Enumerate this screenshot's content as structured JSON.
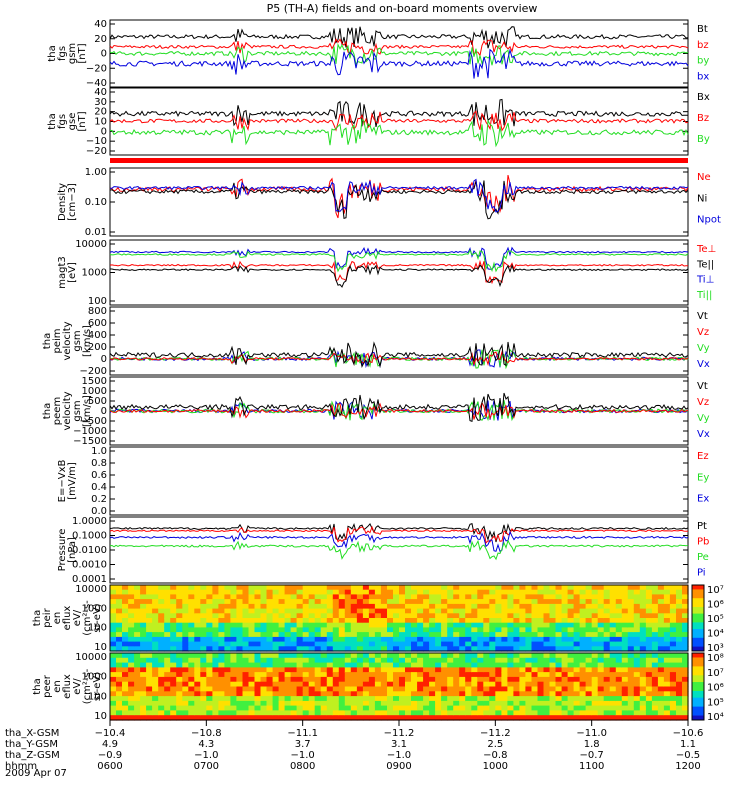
{
  "title": "P5 (TH-A) fields and on-board moments overview",
  "date": "2009 Apr 07",
  "colors": {
    "black": "#000000",
    "red": "#ff0000",
    "green": "#22dd22",
    "blue": "#0000dd",
    "cyan": "#00a0ff"
  },
  "chart_data": [
    {
      "type": "line",
      "ylabel": [
        "tha",
        "fgs",
        "gsm",
        "[nT]"
      ],
      "yticks": [
        "40",
        "20",
        "0",
        "−20",
        "−40"
      ],
      "ylim": [
        -40,
        40
      ],
      "legend": [
        {
          "name": "Bt",
          "color": "black"
        },
        {
          "name": "bz",
          "color": "red"
        },
        {
          "name": "by",
          "color": "green"
        },
        {
          "name": "bx",
          "color": "blue"
        }
      ],
      "series": [
        {
          "name": "Bt",
          "base": 20,
          "noise": 4
        },
        {
          "name": "bz",
          "base": 8,
          "noise": 3
        },
        {
          "name": "by",
          "base": 0,
          "noise": 4
        },
        {
          "name": "bx",
          "base": -12,
          "noise": 5
        }
      ]
    },
    {
      "type": "line",
      "ylabel": [
        "tha",
        "fgs",
        "gse",
        "[nT]"
      ],
      "yticks": [
        "40",
        "30",
        "20",
        "10",
        "0",
        "−10",
        "−20"
      ],
      "ylim": [
        -25,
        40
      ],
      "legend": [
        {
          "name": "Bx",
          "color": "black"
        },
        {
          "name": "Bz",
          "color": "red"
        },
        {
          "name": "By",
          "color": "green"
        }
      ],
      "series": [
        {
          "name": "Bx",
          "base": 15,
          "noise": 4
        },
        {
          "name": "Bz",
          "base": 8,
          "noise": 3
        },
        {
          "name": "By",
          "base": -3,
          "noise": 4
        }
      ]
    },
    {
      "type": "line",
      "log": true,
      "ylabel": [
        "Density",
        "[cm−3]"
      ],
      "yticks": [
        "1.00",
        "0.10",
        "0.01"
      ],
      "ylim": [
        0.01,
        1.4
      ],
      "legend": [
        {
          "name": "Ne",
          "color": "red"
        },
        {
          "name": "Ni",
          "color": "black"
        },
        {
          "name": "Npot",
          "color": "blue"
        }
      ],
      "series": [
        {
          "name": "Ne",
          "base": 0.3,
          "noise": 0.25
        },
        {
          "name": "Ni",
          "base": 0.25,
          "noise": 0.2
        },
        {
          "name": "Npot",
          "base": 0.33,
          "noise": 0.15
        }
      ]
    },
    {
      "type": "line",
      "log": true,
      "ylabel": [
        "magt3",
        "[eV]"
      ],
      "yticks": [
        "10000",
        "1000",
        "100"
      ],
      "ylim": [
        40,
        15000
      ],
      "legend": [
        {
          "name": "Te⊥",
          "color": "red"
        },
        {
          "name": "Te||",
          "color": "black"
        },
        {
          "name": "Ti⊥",
          "color": "blue"
        },
        {
          "name": "Ti||",
          "color": "green"
        }
      ],
      "series": [
        {
          "name": "Ti⊥",
          "base": 5000,
          "noise": 0.1
        },
        {
          "name": "Ti||",
          "base": 4000,
          "noise": 0.1
        },
        {
          "name": "Te⊥",
          "base": 1500,
          "noise": 0.1
        },
        {
          "name": "Te||",
          "base": 1000,
          "noise": 0.1
        }
      ]
    },
    {
      "type": "line",
      "ylabel": [
        "tha",
        "peim",
        "velocity",
        "gsm",
        "[km/s]"
      ],
      "yticks": [
        "800",
        "600",
        "400",
        "200",
        "0",
        "−200"
      ],
      "ylim": [
        -250,
        800
      ],
      "legend": [
        {
          "name": "Vt",
          "color": "black"
        },
        {
          "name": "Vz",
          "color": "red"
        },
        {
          "name": "Vy",
          "color": "green"
        },
        {
          "name": "Vx",
          "color": "blue"
        }
      ],
      "series": [
        {
          "name": "Vx",
          "base": 0,
          "noise": 40
        },
        {
          "name": "Vy",
          "base": 0,
          "noise": 40
        },
        {
          "name": "Vz",
          "base": 0,
          "noise": 30
        },
        {
          "name": "Vt",
          "base": 60,
          "noise": 60
        }
      ]
    },
    {
      "type": "line",
      "ylabel": [
        "tha",
        "peem",
        "velocity",
        "gsm",
        "[km/s]"
      ],
      "yticks": [
        "1500",
        "1000",
        "500",
        "0",
        "−500",
        "−1000",
        "−1500"
      ],
      "ylim": [
        -1700,
        1700
      ],
      "legend": [
        {
          "name": "Vt",
          "color": "black"
        },
        {
          "name": "Vz",
          "color": "red"
        },
        {
          "name": "Vy",
          "color": "green"
        },
        {
          "name": "Vx",
          "color": "blue"
        }
      ],
      "series": [
        {
          "name": "Vx",
          "base": 0,
          "noise": 150
        },
        {
          "name": "Vy",
          "base": 0,
          "noise": 150
        },
        {
          "name": "Vz",
          "base": 0,
          "noise": 120
        },
        {
          "name": "Vt",
          "base": 200,
          "noise": 200
        }
      ]
    },
    {
      "type": "line",
      "ylabel": [
        "E=−VxB",
        "[mV/m]"
      ],
      "yticks": [
        "1.0",
        "0.8",
        "0.6",
        "0.4",
        "0.2",
        "0.0"
      ],
      "ylim": [
        0,
        1
      ],
      "legend": [
        {
          "name": "Ez",
          "color": "red"
        },
        {
          "name": "Ey",
          "color": "green"
        },
        {
          "name": "Ex",
          "color": "blue"
        }
      ],
      "series": []
    },
    {
      "type": "line",
      "log": true,
      "ylabel": [
        "Pressure",
        "[nPa]"
      ],
      "yticks": [
        "1.0000",
        "0.1000",
        "0.0100",
        "0.0010",
        "0.0001"
      ],
      "ylim": [
        0.0001,
        1.3
      ],
      "legend": [
        {
          "name": "Pt",
          "color": "black"
        },
        {
          "name": "Pb",
          "color": "red"
        },
        {
          "name": "Pe",
          "color": "green"
        },
        {
          "name": "Pi",
          "color": "blue"
        }
      ],
      "series": [
        {
          "name": "Pt",
          "base": 0.25,
          "noise": 0.2
        },
        {
          "name": "Pb",
          "base": 0.18,
          "noise": 0.15
        },
        {
          "name": "Pi",
          "base": 0.07,
          "noise": 0.2
        },
        {
          "name": "Pe",
          "base": 0.02,
          "noise": 0.2
        }
      ]
    },
    {
      "type": "heatmap",
      "ylabel": [
        "tha",
        "peir",
        "en",
        "eflux",
        "eV/",
        "(cm²-s-",
        "sr-eV)"
      ],
      "yticks": [
        "10000",
        "1000",
        "100",
        "10"
      ],
      "colorbar": {
        "ticks": [
          "10⁷",
          "10⁶",
          "10⁵",
          "10⁴",
          "10³"
        ]
      }
    },
    {
      "type": "heatmap",
      "ylabel": [
        "tha",
        "peer",
        "en",
        "eflux",
        "eV/",
        "(cm²-s-",
        "sr-eV)"
      ],
      "yticks": [
        "10000",
        "1000",
        "100",
        "10"
      ],
      "colorbar": {
        "ticks": [
          "10⁸",
          "10⁷",
          "10⁶",
          "10⁵",
          "10⁴"
        ]
      }
    }
  ],
  "xaxis": {
    "rows": [
      {
        "label": "tha_X-GSM",
        "values": [
          "−10.4",
          "−10.8",
          "−11.1",
          "−11.2",
          "−11.2",
          "−11.0",
          "−10.6"
        ]
      },
      {
        "label": "tha_Y-GSM",
        "values": [
          "4.9",
          "4.3",
          "3.7",
          "3.1",
          "2.5",
          "1.8",
          "1.1"
        ]
      },
      {
        "label": "tha_Z-GSM",
        "values": [
          "−0.9",
          "−1.0",
          "−1.0",
          "−1.0",
          "−0.8",
          "−0.7",
          "−0.5"
        ]
      },
      {
        "label": "hhmm",
        "values": [
          "0600",
          "0700",
          "0800",
          "0900",
          "1000",
          "1100",
          "1200"
        ]
      }
    ]
  }
}
